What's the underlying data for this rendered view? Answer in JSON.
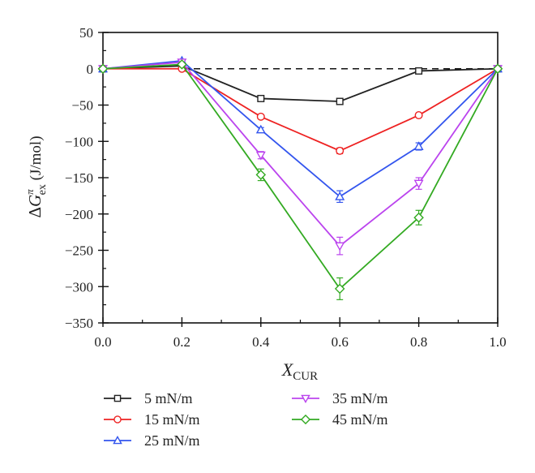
{
  "chart_data": {
    "type": "line",
    "title": "",
    "xlabel": "X",
    "xlabel_sub": "CUR",
    "ylabel_prefix": "ΔG",
    "ylabel_sup": "π",
    "ylabel_sub": "ex",
    "ylabel_unit": " (J/mol)",
    "xlim": [
      0.0,
      1.0
    ],
    "ylim": [
      -350,
      50
    ],
    "x_ticks": [
      0.0,
      0.2,
      0.4,
      0.6,
      0.8,
      1.0
    ],
    "x_tick_labels": [
      "0.0",
      "0.2",
      "0.4",
      "0.6",
      "0.8",
      "1.0"
    ],
    "y_ticks": [
      50,
      0,
      -50,
      -100,
      -150,
      -200,
      -250,
      -300,
      -350
    ],
    "y_tick_labels": [
      "50",
      "0",
      "−50",
      "−100",
      "−150",
      "−200",
      "−250",
      "−300",
      "−350"
    ],
    "grid": false,
    "reference_line": {
      "y": 0,
      "style": "dashed"
    },
    "x": [
      0.0,
      0.2,
      0.4,
      0.6,
      0.8,
      1.0
    ],
    "series": [
      {
        "name": "5 mN/m",
        "color": "#222222",
        "marker": "square",
        "values": [
          0,
          4,
          -41,
          -45,
          -3,
          0
        ],
        "errors": [
          0,
          1,
          2,
          2,
          2,
          0
        ]
      },
      {
        "name": "15 mN/m",
        "color": "#ee2222",
        "marker": "circle",
        "values": [
          0,
          0,
          -66,
          -113,
          -64,
          0
        ],
        "errors": [
          0,
          1,
          2,
          4,
          2,
          0
        ]
      },
      {
        "name": "25 mN/m",
        "color": "#3355ee",
        "marker": "triangle-up",
        "values": [
          0,
          11,
          -84,
          -176,
          -107,
          0
        ],
        "errors": [
          0,
          2,
          3,
          8,
          5,
          0
        ]
      },
      {
        "name": "35 mN/m",
        "color": "#bb44ee",
        "marker": "triangle-down",
        "values": [
          0,
          9,
          -119,
          -244,
          -158,
          0
        ],
        "errors": [
          0,
          2,
          5,
          12,
          8,
          0
        ]
      },
      {
        "name": "45 mN/m",
        "color": "#33aa22",
        "marker": "diamond",
        "values": [
          0,
          6,
          -146,
          -303,
          -205,
          0
        ],
        "errors": [
          0,
          2,
          8,
          15,
          10,
          0
        ]
      }
    ],
    "legend_position": "bottom"
  }
}
